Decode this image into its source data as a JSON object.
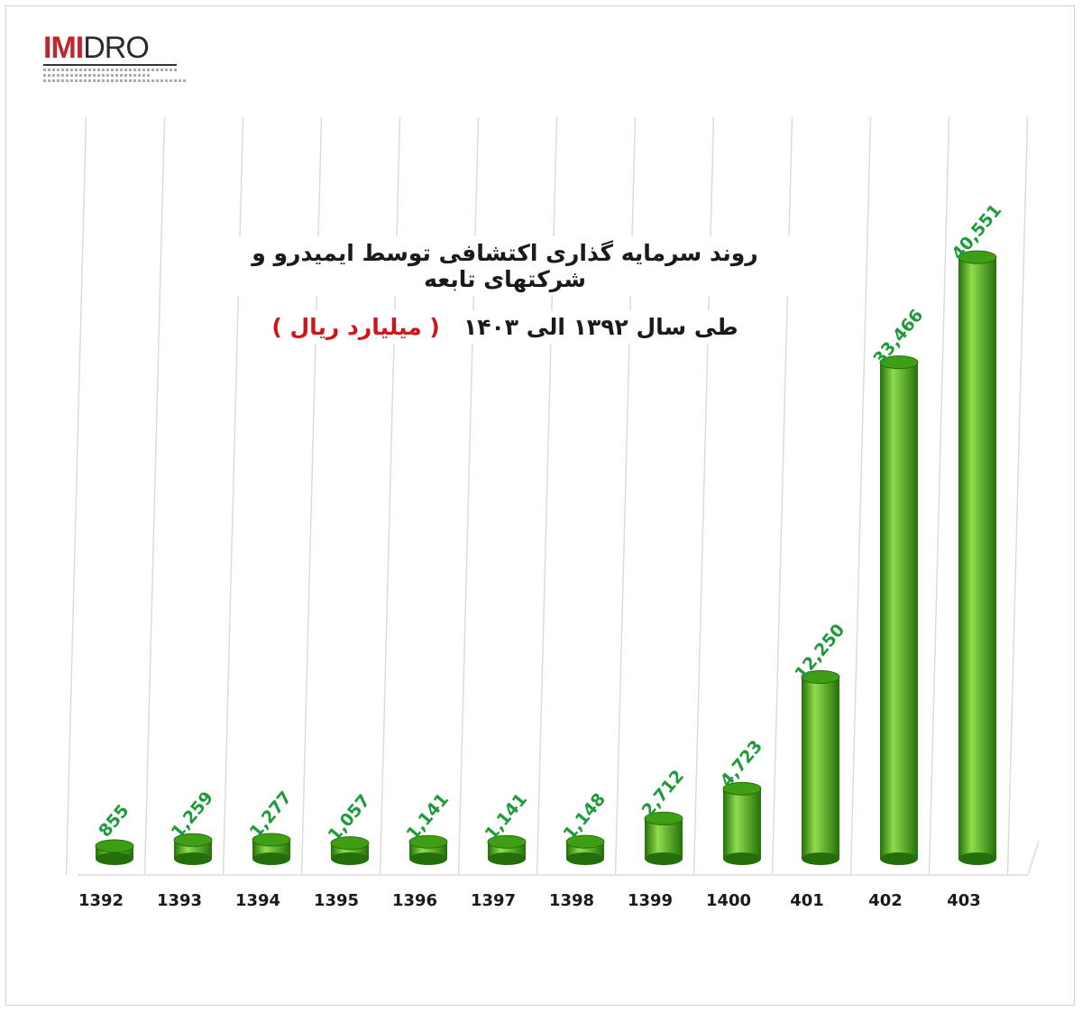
{
  "logo": {
    "text_imi": "IMI",
    "text_dro": "DRO"
  },
  "colors": {
    "bar": "#3f9f14",
    "bar_light": "#8fdc4e",
    "bar_dark": "#23700a",
    "value_label": "#1f9a3b",
    "unit_text": "#d0141a",
    "grid": "#dcdcdc"
  },
  "chart_data": {
    "type": "bar",
    "title": "روند سرمایه گذاری اکتشافی توسط ایمیدرو و شرکتهای تابعه",
    "subtitle": "طی سال ۱۳۹۲ الی ۱۴۰۳",
    "unit": "( میلیارد ریال )",
    "categories": [
      "1392",
      "1393",
      "1394",
      "1395",
      "1396",
      "1397",
      "1398",
      "1399",
      "1400",
      "401",
      "402",
      "403"
    ],
    "values": [
      855,
      1259,
      1277,
      1057,
      1141,
      1141,
      1148,
      2712,
      4723,
      12250,
      33466,
      40551
    ],
    "value_labels": [
      "855",
      "1,259",
      "1,277",
      "1,057",
      "1,141",
      "1,141",
      "1,148",
      "2,712",
      "4,723",
      "12,250",
      "33,466",
      "40,551"
    ],
    "xlabel": "",
    "ylabel": "",
    "ylim": [
      0,
      45000
    ],
    "grid": true,
    "legend": "none"
  }
}
